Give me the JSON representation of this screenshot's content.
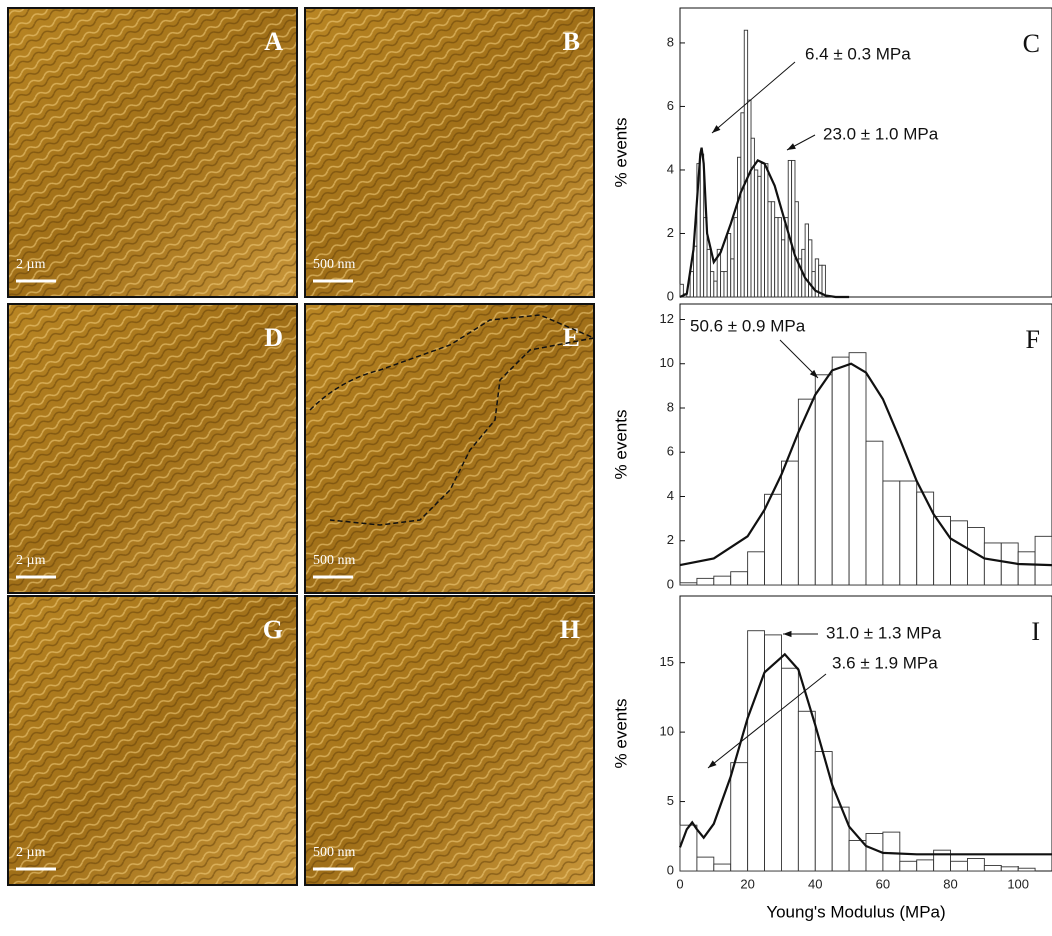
{
  "images": [
    {
      "label": "A",
      "scale": "2 µm"
    },
    {
      "label": "B",
      "scale": "500 nm"
    },
    {
      "label": "D",
      "scale": "2 µm"
    },
    {
      "label": "E",
      "scale": "500 nm"
    },
    {
      "label": "G",
      "scale": "2 µm"
    },
    {
      "label": "H",
      "scale": "500 nm"
    }
  ],
  "chart_data": [
    {
      "type": "histogram",
      "label": "C",
      "ylabel": "% events",
      "annotations": [
        "6.4 ± 0.3 MPa",
        "23.0 ± 1.0 MPa"
      ],
      "bins": [
        0,
        1,
        2,
        3,
        4,
        5,
        6,
        7,
        8,
        9,
        10,
        11,
        12,
        13,
        14,
        15,
        16,
        17,
        18,
        19,
        20,
        21,
        22,
        23,
        24,
        25,
        26,
        27,
        28,
        29,
        30,
        31,
        32,
        33,
        34,
        35,
        36,
        37,
        38,
        39,
        40,
        41,
        42,
        43
      ],
      "counts": [
        0.4,
        0.1,
        0,
        0.8,
        1.6,
        4.2,
        4.5,
        2.5,
        1.5,
        0.8,
        0.5,
        1.5,
        0.8,
        0.8,
        2.0,
        1.2,
        2.5,
        4.4,
        5.8,
        8.4,
        6.2,
        5.0,
        4.0,
        3.8,
        4.2,
        4.2,
        3.0,
        3.0,
        2.5,
        2.5,
        1.8,
        2.5,
        4.3,
        4.3,
        3.0,
        1.2,
        1.5,
        2.3,
        1.8,
        0.8,
        1.2,
        1.0,
        1.0
      ],
      "fit": {
        "x": [
          0,
          2,
          4,
          5,
          6,
          6.4,
          7,
          8,
          10,
          12,
          15,
          18,
          21,
          23,
          25,
          28,
          31,
          34,
          37,
          40,
          43,
          46,
          50
        ],
        "values": [
          0,
          0.1,
          1.5,
          3,
          4.5,
          4.7,
          4.2,
          2,
          1.1,
          1.4,
          2.3,
          3.3,
          4.0,
          4.3,
          4.2,
          3.5,
          2.4,
          1.3,
          0.6,
          0.2,
          0.05,
          0,
          0
        ]
      },
      "xlim": [
        0,
        110
      ],
      "ylim": [
        0,
        9.1
      ],
      "yticks": [
        0,
        2,
        4,
        6,
        8
      ]
    },
    {
      "type": "histogram",
      "label": "F",
      "ylabel": "% events",
      "annotations": [
        "50.6 ± 0.9 MPa"
      ],
      "bins": [
        0,
        5,
        10,
        15,
        20,
        25,
        30,
        35,
        40,
        45,
        50,
        55,
        60,
        65,
        70,
        75,
        80,
        85,
        90,
        95,
        100,
        105,
        110
      ],
      "counts": [
        0.1,
        0.3,
        0.4,
        0.6,
        1.5,
        4.1,
        5.6,
        8.4,
        9.5,
        10.3,
        10.5,
        6.5,
        4.7,
        4.7,
        4.2,
        3.1,
        2.9,
        2.6,
        1.9,
        1.9,
        1.5,
        2.2
      ],
      "fit": {
        "x": [
          0,
          10,
          20,
          25,
          30,
          35,
          40,
          45,
          50.6,
          55,
          60,
          65,
          70,
          75,
          80,
          90,
          100,
          110
        ],
        "values": [
          0.9,
          1.2,
          2.2,
          3.4,
          5.0,
          6.9,
          8.6,
          9.7,
          10.0,
          9.6,
          8.4,
          6.6,
          4.7,
          3.2,
          2.1,
          1.2,
          0.95,
          0.9
        ]
      },
      "xlim": [
        0,
        110
      ],
      "ylim": [
        0,
        12.7
      ],
      "yticks": [
        0,
        2,
        4,
        6,
        8,
        10,
        12
      ]
    },
    {
      "type": "histogram",
      "label": "I",
      "ylabel": "% events",
      "xlabel": "Young's Modulus (MPa)",
      "annotations": [
        "31.0 ± 1.3 MPa",
        "3.6 ± 1.9 MPa"
      ],
      "bins": [
        0,
        5,
        10,
        15,
        20,
        25,
        30,
        35,
        40,
        45,
        50,
        55,
        60,
        65,
        70,
        75,
        80,
        85,
        90,
        95,
        100,
        105,
        110
      ],
      "counts": [
        3.3,
        1.0,
        0.5,
        7.8,
        17.3,
        17.0,
        14.6,
        11.5,
        8.6,
        4.6,
        2.2,
        2.7,
        2.8,
        0.7,
        0.8,
        1.5,
        0.7,
        0.9,
        0.4,
        0.3,
        0.2,
        0
      ],
      "fit": {
        "x": [
          0,
          2,
          3.6,
          5,
          7,
          10,
          15,
          20,
          25,
          31,
          35,
          40,
          45,
          50,
          55,
          60,
          70,
          80,
          110
        ],
        "values": [
          1.7,
          3.0,
          3.5,
          3.0,
          2.4,
          3.4,
          6.8,
          11.0,
          14.3,
          15.6,
          14.5,
          10.5,
          6.2,
          3.2,
          1.8,
          1.3,
          1.2,
          1.2,
          1.2
        ]
      },
      "xlim": [
        0,
        110
      ],
      "ylim": [
        0,
        19.8
      ],
      "yticks": [
        0,
        5,
        10,
        15
      ],
      "xticks": [
        0,
        20,
        40,
        60,
        80,
        100
      ]
    }
  ]
}
